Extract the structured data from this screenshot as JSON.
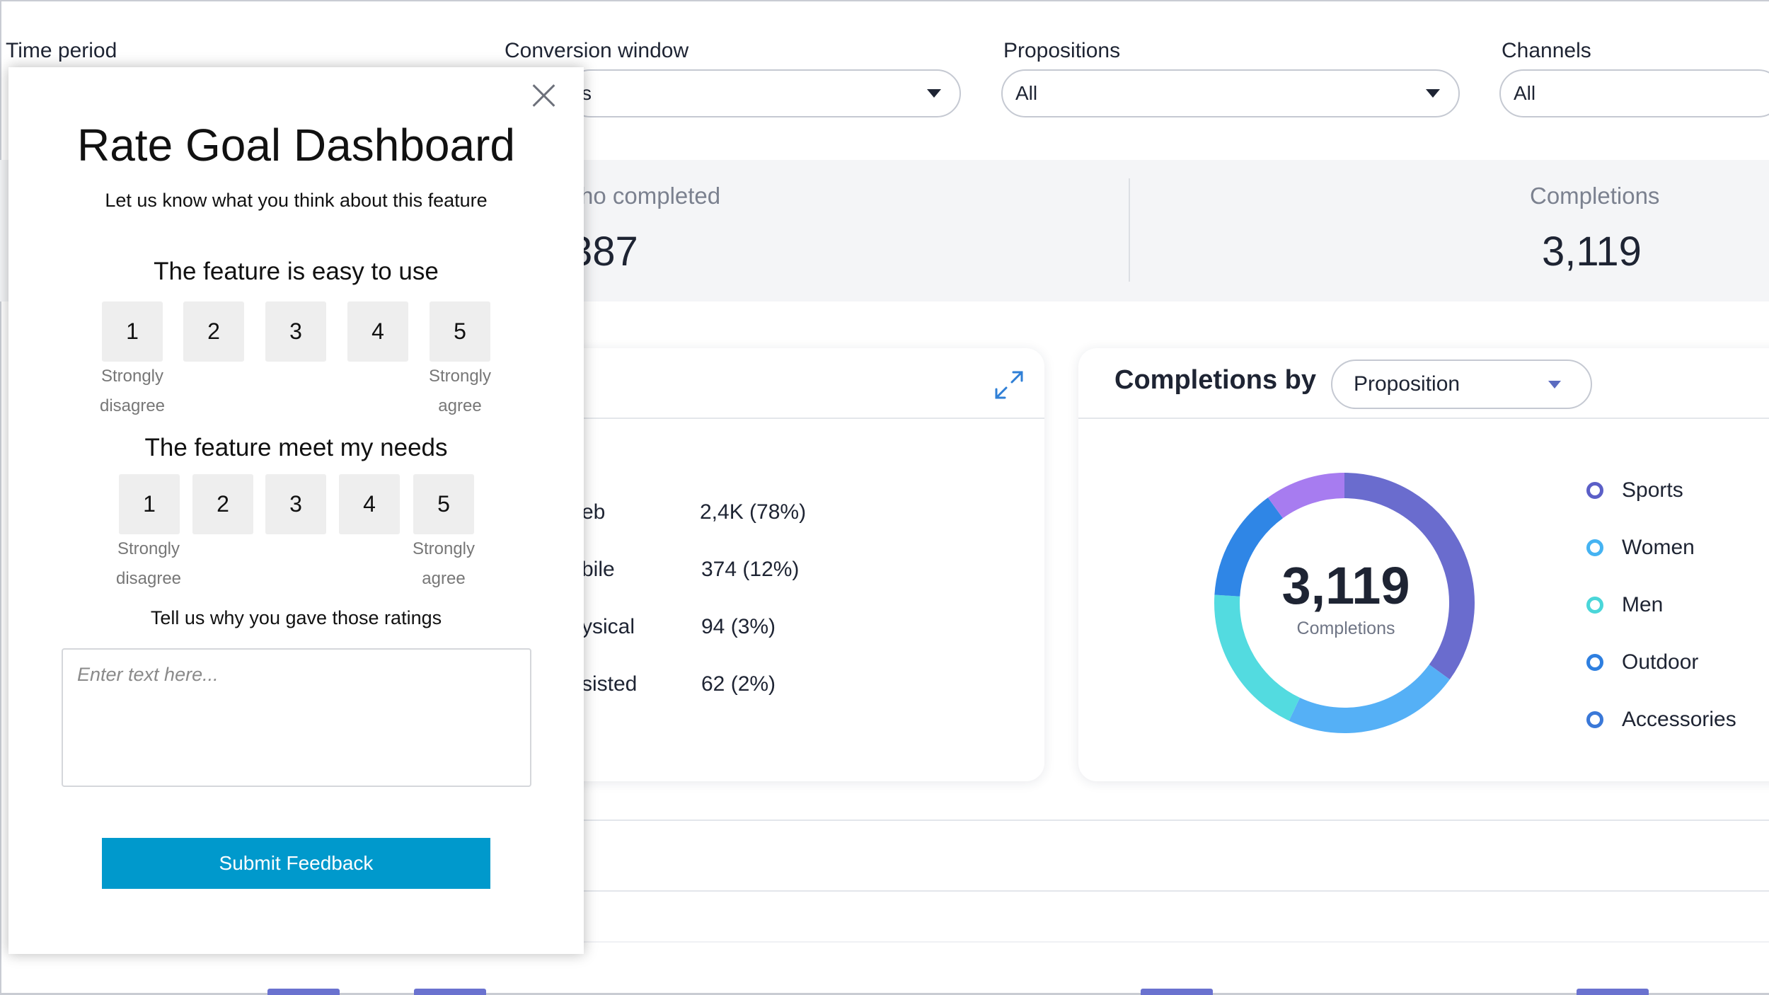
{
  "filters": {
    "time_period_label": "Time period",
    "conversion_window_label": "Conversion window",
    "conversion_window_value": "s",
    "propositions_label": "Propositions",
    "propositions_value": "All",
    "channels_label": "Channels",
    "channels_value": "All"
  },
  "stats": {
    "who_completed_label": "ho completed",
    "who_completed_value": "387",
    "completions_label": "Completions",
    "completions_value": "3,119"
  },
  "channels_card": {
    "expand_icon": "expand-icon",
    "rows": [
      {
        "label": "eb",
        "value": "2,4K (78%)"
      },
      {
        "label": "bile",
        "value": "374 (12%)"
      },
      {
        "label": "ysical",
        "value": "94 (3%)"
      },
      {
        "label": "sisted",
        "value": "62 (2%)"
      }
    ]
  },
  "completions_by": {
    "title": "Completions by",
    "dimension": "Proposition",
    "center_value": "3,119",
    "center_label": "Completions",
    "legend": [
      {
        "label": "Sports",
        "color": "#5b5fc7"
      },
      {
        "label": "Women",
        "color": "#45b3f2"
      },
      {
        "label": "Men",
        "color": "#4ad6d9"
      },
      {
        "label": "Outdoor",
        "color": "#2e7fe0"
      },
      {
        "label": "Accessories",
        "color": "#3a78d8"
      }
    ],
    "segment_colors": [
      "#6a6cce",
      "#55b0f6",
      "#53dbe0",
      "#2f86e6",
      "#a77cf0"
    ]
  },
  "modal": {
    "close_icon": "close-icon",
    "title": "Rate Goal Dashboard",
    "subtitle": "Let us know what you think about this feature",
    "q1": "The feature is easy to use",
    "q2": "The feature meet my needs",
    "scale": [
      "1",
      "2",
      "3",
      "4",
      "5"
    ],
    "strongly": "Strongly",
    "disagree": "disagree",
    "agree": "agree",
    "why": "Tell us why you gave those ratings",
    "placeholder": "Enter text here...",
    "submit": "Submit Feedback"
  }
}
